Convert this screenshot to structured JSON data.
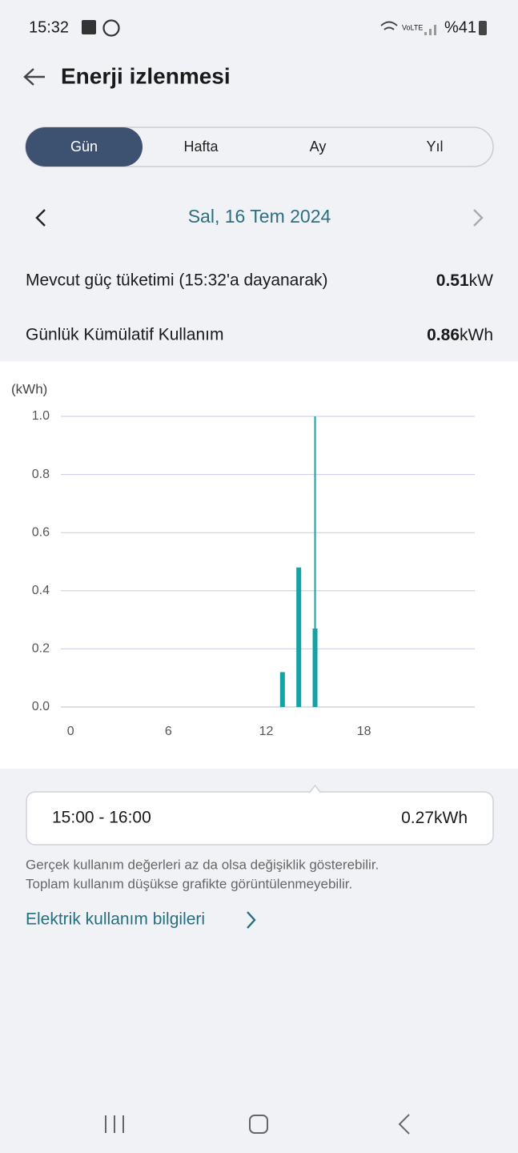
{
  "status_bar": {
    "time": "15:32",
    "battery": "%41"
  },
  "header": {
    "title": "Enerji izlenmesi"
  },
  "tabs": {
    "items": [
      "Gün",
      "Hafta",
      "Ay",
      "Yıl"
    ],
    "selected": 0
  },
  "date": "Sal, 16 Tem 2024",
  "stats": [
    {
      "label": "Mevcut güç tüketimi (15:32'a dayanarak)",
      "value": "0.51",
      "unit": "kW"
    },
    {
      "label": "Günlük Kümülatif Kullanım",
      "value": "0.86",
      "unit": "kWh"
    }
  ],
  "chart_data": {
    "type": "bar",
    "y_label": "(kWh)",
    "x": [
      13,
      14,
      15
    ],
    "values": [
      0.12,
      0.48,
      0.27
    ],
    "color": "#13a2a6",
    "xlim": [
      -0.6,
      24.8
    ],
    "xticks": [
      0,
      6,
      12,
      18
    ],
    "ylim": [
      0,
      1
    ],
    "yticks": [
      {
        "value": 0,
        "label": "0.0"
      },
      0.2,
      0.4,
      0.6,
      0.8,
      {
        "value": 1,
        "label": "1.0"
      }
    ],
    "grid": true,
    "selected": 2
  },
  "detail": {
    "range": "15:00 - 16:00",
    "unit": "kWh"
  },
  "notes": [
    "Gerçek kullanım değerleri az da olsa değişiklik gösterebilir.",
    "Toplam kullanım düşükse grafikte görüntülenmeyebilir."
  ],
  "link": "Elektrik kullanım bilgileri"
}
